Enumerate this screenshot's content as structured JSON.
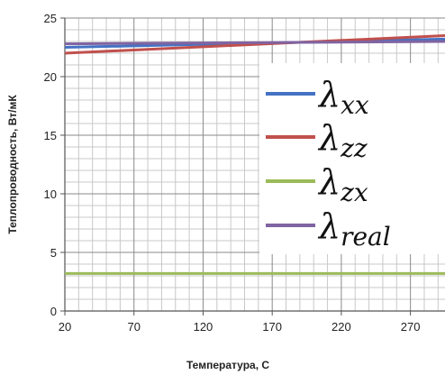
{
  "chart_data": {
    "type": "line",
    "title": "",
    "xlabel": "Температура, С",
    "ylabel": "Теплопроводность, Вт/мК",
    "xlim": [
      20,
      295
    ],
    "ylim": [
      0,
      25
    ],
    "x_ticks": [
      "20",
      "70",
      "120",
      "170",
      "220",
      "270"
    ],
    "y_ticks": [
      "0",
      "5",
      "10",
      "15",
      "20",
      "25"
    ],
    "grid": true,
    "legend_position": "right",
    "series": [
      {
        "name": "λ",
        "subscript": "xx",
        "color": "#4472C4",
        "x": [
          20,
          295
        ],
        "y": [
          22.5,
          23.2
        ]
      },
      {
        "name": "λ",
        "subscript": "zz",
        "color": "#C0504D",
        "x": [
          20,
          295
        ],
        "y": [
          22.0,
          23.5
        ]
      },
      {
        "name": "λ",
        "subscript": "zx",
        "color": "#9BBB59",
        "x": [
          20,
          295
        ],
        "y": [
          3.2,
          3.2
        ]
      },
      {
        "name": "λ",
        "subscript": "real",
        "color": "#8064A2",
        "x": [
          20,
          295
        ],
        "y": [
          22.8,
          23.0
        ]
      }
    ]
  }
}
